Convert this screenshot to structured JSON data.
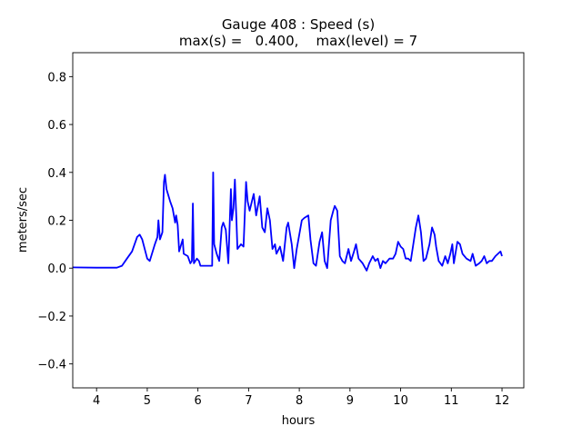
{
  "chart_data": {
    "type": "line",
    "title": "Gauge 408 : Speed (s)",
    "subtitle": "max(s) =   0.400,    max(level) = 7",
    "xlabel": "hours",
    "ylabel": "meters/sec",
    "xlim": [
      3.53,
      12.43
    ],
    "ylim": [
      -0.5,
      0.9
    ],
    "xticks": [
      4,
      5,
      6,
      7,
      8,
      9,
      10,
      11,
      12
    ],
    "xtick_labels": [
      "4",
      "5",
      "6",
      "7",
      "8",
      "9",
      "10",
      "11",
      "12"
    ],
    "yticks": [
      -0.4,
      -0.2,
      0.0,
      0.2,
      0.4,
      0.6,
      0.8
    ],
    "ytick_labels": [
      "−0.4",
      "−0.2",
      "0.0",
      "0.2",
      "0.4",
      "0.6",
      "0.8"
    ],
    "grid": false,
    "series": [
      {
        "name": "speed",
        "color": "#0000ff",
        "x": [
          3.53,
          4.0,
          4.4,
          4.5,
          4.6,
          4.7,
          4.8,
          4.85,
          4.9,
          5.0,
          5.05,
          5.15,
          5.2,
          5.22,
          5.25,
          5.3,
          5.33,
          5.35,
          5.38,
          5.45,
          5.5,
          5.55,
          5.57,
          5.6,
          5.63,
          5.7,
          5.72,
          5.8,
          5.85,
          5.88,
          5.9,
          5.92,
          5.98,
          6.02,
          6.05,
          6.2,
          6.28,
          6.3,
          6.32,
          6.37,
          6.42,
          6.47,
          6.5,
          6.55,
          6.6,
          6.65,
          6.67,
          6.7,
          6.73,
          6.76,
          6.78,
          6.85,
          6.9,
          6.95,
          6.98,
          7.02,
          7.1,
          7.15,
          7.22,
          7.27,
          7.32,
          7.37,
          7.42,
          7.47,
          7.52,
          7.55,
          7.62,
          7.68,
          7.75,
          7.78,
          7.85,
          7.9,
          7.95,
          8.05,
          8.1,
          8.18,
          8.22,
          8.28,
          8.33,
          8.4,
          8.45,
          8.5,
          8.55,
          8.62,
          8.67,
          8.7,
          8.75,
          8.8,
          8.85,
          8.9,
          8.97,
          9.02,
          9.08,
          9.12,
          9.17,
          9.25,
          9.33,
          9.38,
          9.45,
          9.5,
          9.55,
          9.6,
          9.65,
          9.7,
          9.78,
          9.85,
          9.9,
          9.95,
          10.0,
          10.05,
          10.1,
          10.15,
          10.2,
          10.3,
          10.35,
          10.4,
          10.45,
          10.5,
          10.57,
          10.62,
          10.67,
          10.7,
          10.75,
          10.82,
          10.88,
          10.93,
          10.98,
          11.02,
          11.05,
          11.08,
          11.12,
          11.17,
          11.22,
          11.3,
          11.38,
          11.42,
          11.48,
          11.55,
          11.6,
          11.65,
          11.7,
          11.75,
          11.8,
          11.87,
          11.92,
          11.97,
          12.0
        ],
        "y": [
          0.003,
          0.002,
          0.002,
          0.01,
          0.04,
          0.07,
          0.13,
          0.14,
          0.12,
          0.04,
          0.03,
          0.1,
          0.13,
          0.2,
          0.12,
          0.15,
          0.36,
          0.39,
          0.33,
          0.28,
          0.25,
          0.19,
          0.22,
          0.18,
          0.07,
          0.12,
          0.06,
          0.05,
          0.02,
          0.03,
          0.27,
          0.02,
          0.04,
          0.03,
          0.01,
          0.01,
          0.01,
          0.4,
          0.1,
          0.06,
          0.03,
          0.17,
          0.19,
          0.16,
          0.02,
          0.33,
          0.2,
          0.25,
          0.37,
          0.2,
          0.08,
          0.1,
          0.09,
          0.36,
          0.28,
          0.24,
          0.31,
          0.22,
          0.3,
          0.17,
          0.15,
          0.25,
          0.2,
          0.08,
          0.1,
          0.06,
          0.09,
          0.03,
          0.17,
          0.19,
          0.1,
          0.0,
          0.08,
          0.2,
          0.21,
          0.22,
          0.12,
          0.02,
          0.01,
          0.11,
          0.15,
          0.03,
          0.0,
          0.2,
          0.24,
          0.26,
          0.24,
          0.05,
          0.03,
          0.02,
          0.08,
          0.03,
          0.07,
          0.1,
          0.04,
          0.02,
          -0.01,
          0.02,
          0.05,
          0.03,
          0.04,
          0.0,
          0.03,
          0.02,
          0.04,
          0.04,
          0.06,
          0.11,
          0.09,
          0.08,
          0.04,
          0.04,
          0.03,
          0.17,
          0.22,
          0.15,
          0.03,
          0.04,
          0.1,
          0.17,
          0.14,
          0.09,
          0.03,
          0.01,
          0.05,
          0.02,
          0.06,
          0.1,
          0.02,
          0.06,
          0.11,
          0.1,
          0.06,
          0.04,
          0.03,
          0.06,
          0.01,
          0.02,
          0.03,
          0.05,
          0.02,
          0.03,
          0.03,
          0.05,
          0.06,
          0.07,
          0.05
        ]
      }
    ]
  }
}
